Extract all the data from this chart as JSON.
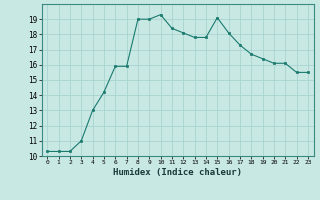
{
  "x": [
    0,
    1,
    2,
    3,
    4,
    5,
    6,
    7,
    8,
    9,
    10,
    11,
    12,
    13,
    14,
    15,
    16,
    17,
    18,
    19,
    20,
    21,
    22,
    23
  ],
  "y": [
    10.3,
    10.3,
    10.3,
    11.0,
    13.0,
    14.2,
    15.9,
    15.9,
    19.0,
    19.0,
    19.3,
    18.4,
    18.1,
    17.8,
    17.8,
    19.1,
    18.1,
    17.3,
    16.7,
    16.4,
    16.1,
    16.1,
    15.5,
    15.5
  ],
  "xlabel": "Humidex (Indice chaleur)",
  "ylim": [
    10,
    20
  ],
  "xlim": [
    -0.5,
    23.5
  ],
  "yticks": [
    10,
    11,
    12,
    13,
    14,
    15,
    16,
    17,
    18,
    19
  ],
  "xticks": [
    0,
    1,
    2,
    3,
    4,
    5,
    6,
    7,
    8,
    9,
    10,
    11,
    12,
    13,
    14,
    15,
    16,
    17,
    18,
    19,
    20,
    21,
    22,
    23
  ],
  "line_color": "#1a7a6e",
  "marker_color": "#1a7a6e",
  "bg_color": "#c8e8e4",
  "grid_color": "#aad4d0"
}
